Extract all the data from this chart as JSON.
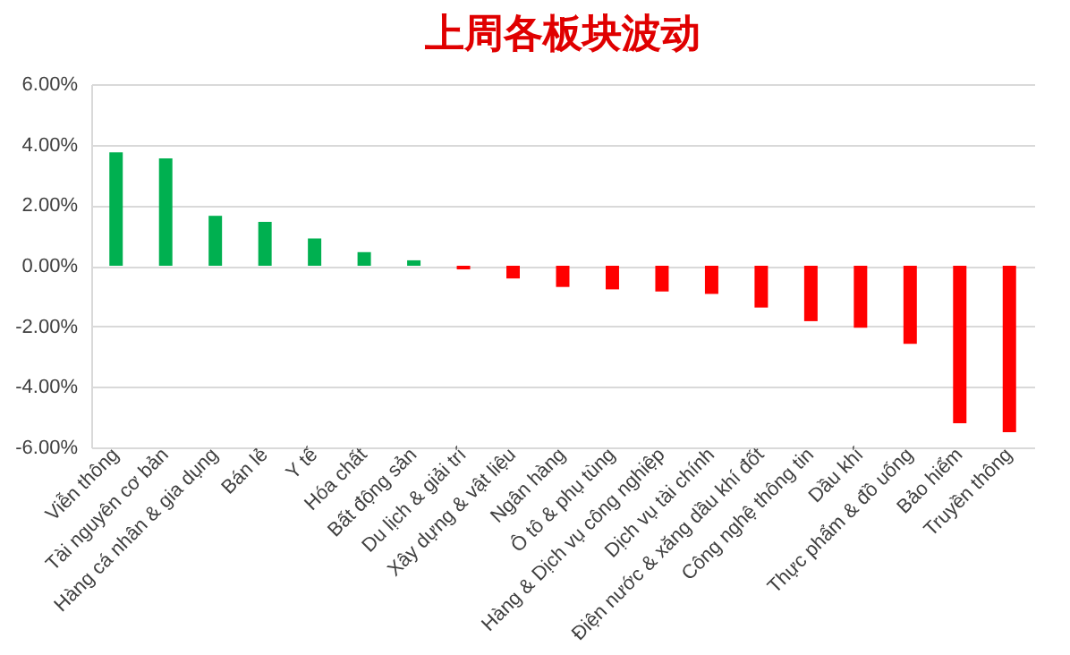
{
  "chart_data": {
    "type": "bar",
    "title": "上周各板块波动",
    "categories": [
      "Viễn thông",
      "Tài nguyên cơ bản",
      "Hàng cá nhân & gia dụng",
      "Bán lẻ",
      "Y tế",
      "Hóa chất",
      "Bất động sản",
      "Du lịch & giải trí",
      "Xây dựng & vật liệu",
      "Ngân hàng",
      "Ô tô & phụ tùng",
      "Hàng & Dịch vụ công nghiệp",
      "Dịch vụ tài chính",
      "Điện nước & xăng dầu khí đốt",
      "Công nghệ thông tin",
      "Dầu khí",
      "Thực phẩm & đồ uống",
      "Bảo hiểm",
      "Truyền thông"
    ],
    "values": [
      3.75,
      3.55,
      1.65,
      1.45,
      0.9,
      0.45,
      0.18,
      -0.12,
      -0.42,
      -0.7,
      -0.78,
      -0.85,
      -0.93,
      -1.38,
      -1.83,
      -2.05,
      -2.58,
      -5.2,
      -5.5
    ],
    "colors": [
      "#00b050",
      "#00b050",
      "#00b050",
      "#00b050",
      "#00b050",
      "#00b050",
      "#00b050",
      "#ff0000",
      "#ff0000",
      "#ff0000",
      "#ff0000",
      "#ff0000",
      "#ff0000",
      "#ff0000",
      "#ff0000",
      "#ff0000",
      "#ff0000",
      "#ff0000",
      "#ff0000"
    ],
    "ylim": [
      -6,
      6
    ],
    "yticks": [
      {
        "value": -6,
        "label": "-6.00%"
      },
      {
        "value": -4,
        "label": "-4.00%"
      },
      {
        "value": -2,
        "label": "-2.00%"
      },
      {
        "value": 0,
        "label": "0.00%"
      },
      {
        "value": 2,
        "label": "2.00%"
      },
      {
        "value": 4,
        "label": "4.00%"
      },
      {
        "value": 6,
        "label": "6.00%"
      }
    ],
    "grid": "y"
  }
}
